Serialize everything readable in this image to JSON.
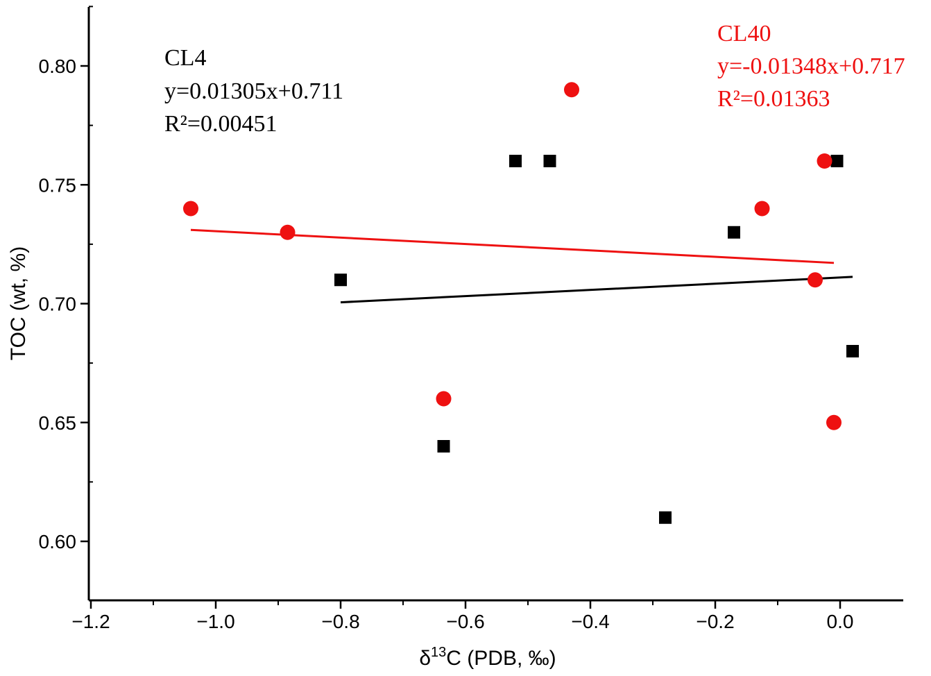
{
  "chart_data": {
    "type": "scatter",
    "xlabel_main": "δ",
    "xlabel_sup": "13",
    "xlabel_rest": "C (PDB, ‰)",
    "ylabel": "TOC (wt, %)",
    "xlim": [
      -1.2,
      0.1
    ],
    "ylim": [
      0.58,
      0.825
    ],
    "xticks": [
      -1.2,
      -1.0,
      -0.8,
      -0.6,
      -0.4,
      -0.2,
      0.0
    ],
    "xtick_labels": [
      "−1.2",
      "−1.0",
      "−0.8",
      "−0.6",
      "−0.4",
      "−0.2",
      "0.0"
    ],
    "yticks": [
      0.6,
      0.65,
      0.7,
      0.75,
      0.8
    ],
    "ytick_labels": [
      "0.60",
      "0.65",
      "0.70",
      "0.75",
      "0.80"
    ],
    "series": [
      {
        "name": "CL4",
        "marker": "square",
        "color": "#000000",
        "points": [
          [
            -0.8,
            0.71
          ],
          [
            -0.635,
            0.64
          ],
          [
            -0.52,
            0.76
          ],
          [
            -0.465,
            0.76
          ],
          [
            -0.28,
            0.61
          ],
          [
            -0.17,
            0.73
          ],
          [
            -0.005,
            0.76
          ],
          [
            0.02,
            0.68
          ]
        ],
        "fit": {
          "x_range": [
            -0.8,
            0.02
          ],
          "slope": 0.01305,
          "intercept": 0.711
        },
        "annotation": [
          "CL4",
          "y=0.01305x+0.711",
          "R²=0.00451"
        ]
      },
      {
        "name": "CL40",
        "marker": "circle",
        "color": "#ee1111",
        "points": [
          [
            -1.04,
            0.74
          ],
          [
            -0.885,
            0.73
          ],
          [
            -0.635,
            0.66
          ],
          [
            -0.43,
            0.79
          ],
          [
            -0.125,
            0.74
          ],
          [
            -0.04,
            0.71
          ],
          [
            -0.025,
            0.76
          ],
          [
            -0.01,
            0.65
          ]
        ],
        "fit": {
          "x_range": [
            -1.04,
            -0.01
          ],
          "slope": -0.01348,
          "intercept": 0.717
        },
        "annotation": [
          "CL40",
          "y=-0.01348x+0.717",
          "R²=0.01363"
        ]
      }
    ]
  }
}
